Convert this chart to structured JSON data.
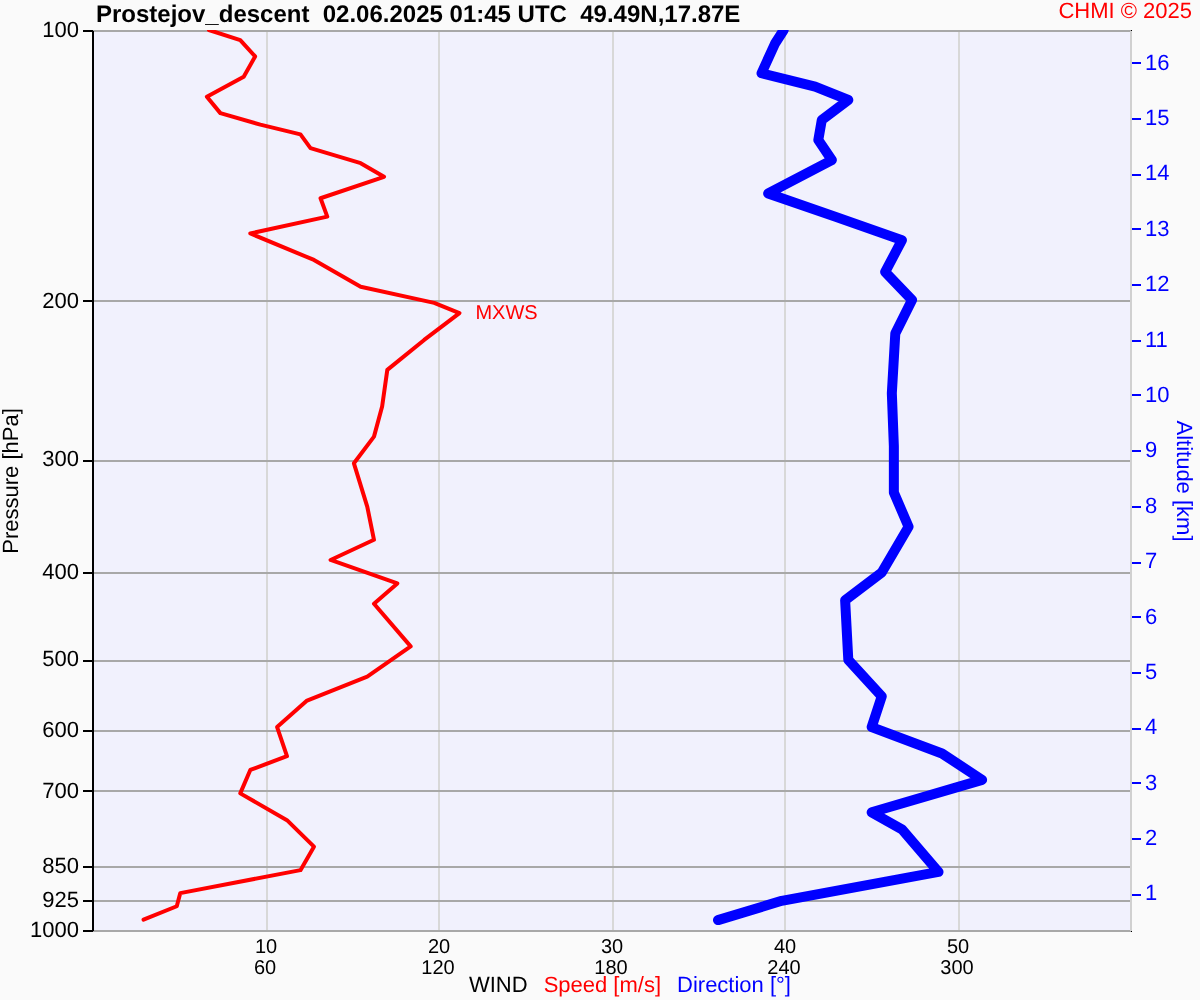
{
  "chart_data": {
    "type": "line",
    "title": "Prostejov_descent  02.06.2025 01:45 UTC  49.49N,17.87E",
    "xlabel": "WIND",
    "ylabel": "Pressure [hPa]",
    "y2label": "Altitude [km]",
    "annotations": [
      "CHMI © 2025",
      {
        "text": "MXWS",
        "x": 21.24,
        "y": 206.3
      }
    ],
    "log": "y",
    "grid": true,
    "xlim": [
      0,
      60
    ],
    "xticks": [
      10,
      20,
      30,
      40,
      50
    ],
    "x2lim": [
      0,
      360
    ],
    "x2ticks": [
      60,
      120,
      180,
      240,
      300
    ],
    "ylim": [
      1000,
      100
    ],
    "yticks": [
      100,
      200,
      300,
      400,
      500,
      600,
      700,
      850,
      925,
      1000
    ],
    "y2lim": [
      0.34,
      16.59
    ],
    "y2ticks": [
      1,
      2,
      3,
      4,
      5,
      6,
      7,
      8,
      9,
      10,
      11,
      12,
      13,
      14,
      15,
      16
    ],
    "series": [
      {
        "name": "Speed [m/s]",
        "color": "#ff0000",
        "x": [
          6.76,
          8.57,
          9.43,
          8.77,
          6.64,
          7.42,
          9.73,
          12.05,
          12.63,
          15.53,
          16.88,
          13.21,
          13.6,
          9.15,
          12.83,
          15.53,
          19.78,
          21.24,
          19.2,
          17.07,
          16.77,
          16.3,
          15.14,
          15.91,
          16.3,
          13.79,
          17.65,
          16.3,
          18.42,
          15.91,
          12.43,
          10.7,
          11.27,
          9.15,
          8.57,
          11.27,
          12.83,
          12.05,
          5.1,
          4.9,
          2.98
        ],
        "values": [
          100,
          102.6,
          107,
          112.7,
          118.6,
          123.7,
          127.4,
          130.6,
          135.3,
          140.6,
          145.6,
          153.8,
          161.2,
          168.3,
          180.1,
          192.9,
          201,
          206.3,
          221,
          238.6,
          262,
          283,
          303,
          338.5,
          368.5,
          388,
          412,
          434,
          484,
          523,
          556,
          595,
          641,
          664,
          705,
          755,
          808,
          858,
          910,
          941,
          974
        ]
      },
      {
        "name": "Direction [°]",
        "color": "#0000ff",
        "axis": "x2",
        "x": [
          239.9,
          236.9,
          232.2,
          250.8,
          262.3,
          253.1,
          251.9,
          256.6,
          234.5,
          257.7,
          280.9,
          275.1,
          284.4,
          278.6,
          277.4,
          278.1,
          278.1,
          283.2,
          273.9,
          261.2,
          262.3,
          273.9,
          270.4,
          294.8,
          308.7,
          270.4,
          280.9,
          293.6,
          239.2,
          217.1
        ],
        "values": [
          100,
          103.5,
          111.7,
          115.6,
          119.6,
          125.9,
          132.5,
          139.5,
          151.9,
          161.2,
          171.2,
          185.7,
          199.5,
          217.4,
          253.3,
          290,
          326.5,
          356.4,
          400.6,
          430.1,
          501,
          550,
          595,
          636.6,
          681,
          740,
          773,
          862,
          928,
          975
        ]
      }
    ]
  }
}
